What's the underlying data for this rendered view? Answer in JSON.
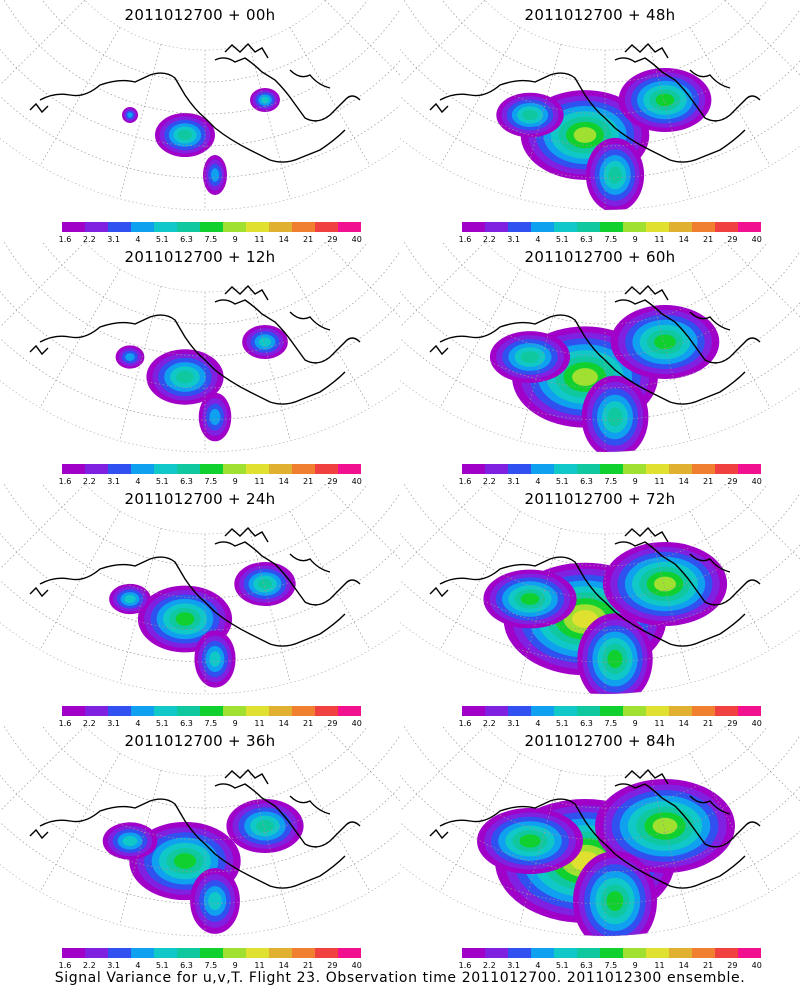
{
  "colorbar": {
    "ticks": [
      "1.6",
      "2.2",
      "3.1",
      "4",
      "5.1",
      "6.3",
      "7.5",
      "9",
      "11",
      "14",
      "21",
      "29",
      "40"
    ],
    "colors": [
      "#a000c8",
      "#8020e0",
      "#3050f0",
      "#10a0f0",
      "#10c8c8",
      "#10c8a0",
      "#10d030",
      "#a0e030",
      "#e0e030",
      "#e0b030",
      "#f08030",
      "#f04040",
      "#f01090"
    ]
  },
  "footer": "Signal Variance for u,v,T. Flight 23. Observation time 2011012700. 2011012300 ensemble.",
  "chart_data": [
    {
      "type": "heatmap",
      "title": "2011012700 + 00h",
      "lead_hours": 0
    },
    {
      "type": "heatmap",
      "title": "2011012700 + 48h",
      "lead_hours": 48
    },
    {
      "type": "heatmap",
      "title": "2011012700 + 12h",
      "lead_hours": 12
    },
    {
      "type": "heatmap",
      "title": "2011012700 + 60h",
      "lead_hours": 60
    },
    {
      "type": "heatmap",
      "title": "2011012700 + 24h",
      "lead_hours": 24
    },
    {
      "type": "heatmap",
      "title": "2011012700 + 72h",
      "lead_hours": 72
    },
    {
      "type": "heatmap",
      "title": "2011012700 + 36h",
      "lead_hours": 36
    },
    {
      "type": "heatmap",
      "title": "2011012700 + 84h",
      "lead_hours": 84
    }
  ]
}
